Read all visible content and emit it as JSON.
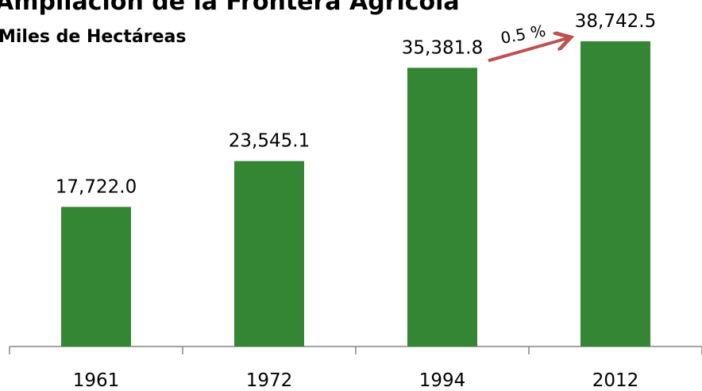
{
  "chart_data": {
    "type": "bar",
    "title": "Ampliación de la Frontera Agrícola",
    "subtitle": "Miles de Hectáreas",
    "categories": [
      "1961",
      "1972",
      "1994",
      "2012"
    ],
    "values": [
      17722.0,
      23545.1,
      35381.8,
      38742.5
    ],
    "value_labels": [
      "17,722.0",
      "23,545.1",
      "35,381.8",
      "38,742.5"
    ],
    "color": "#348534",
    "annotation": "0.5 %",
    "annotation_color": "#c0504d"
  }
}
